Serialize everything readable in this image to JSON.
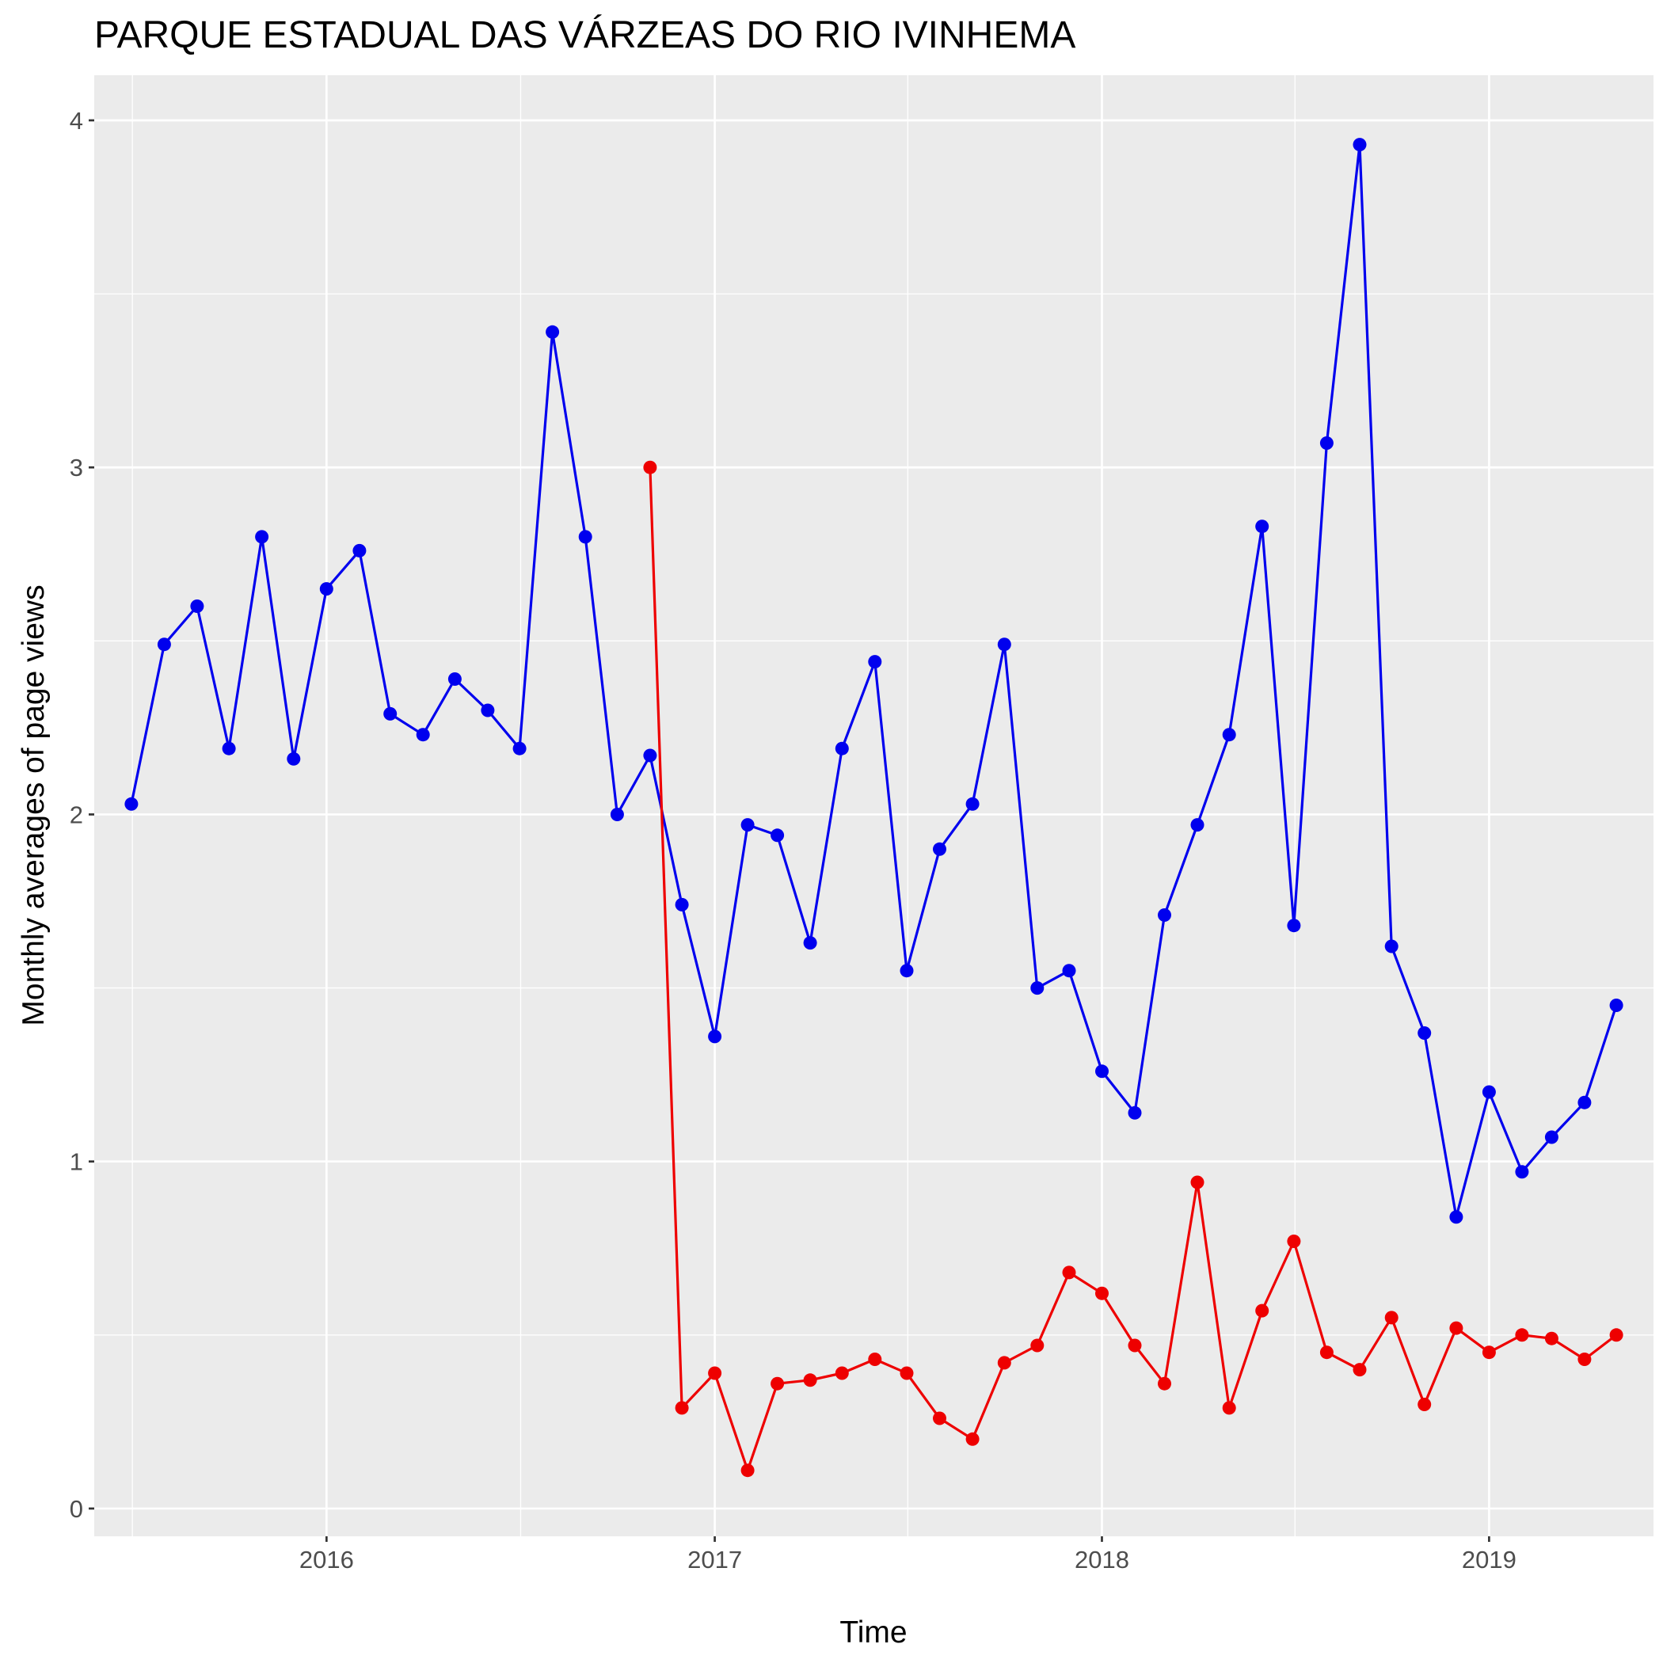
{
  "chart_data": {
    "type": "line",
    "title": "PARQUE ESTADUAL DAS VÁRZEAS DO RIO IVINHEMA",
    "xlabel": "Time",
    "ylabel": "Monthly averages of page views",
    "x_ticks": [
      "2016",
      "2017",
      "2018",
      "2019"
    ],
    "y_ticks": [
      "0",
      "1",
      "2",
      "3",
      "4"
    ],
    "ylim": [
      -0.08,
      4.13
    ],
    "xlim": [
      "2015-05-27",
      "2019-06-05"
    ],
    "grid": true,
    "legend": "none",
    "x": [
      "2015-07",
      "2015-08",
      "2015-09",
      "2015-10",
      "2015-11",
      "2015-12",
      "2016-01",
      "2016-02",
      "2016-03",
      "2016-04",
      "2016-05",
      "2016-06",
      "2016-07",
      "2016-08",
      "2016-09",
      "2016-10",
      "2016-11",
      "2016-12",
      "2017-01",
      "2017-02",
      "2017-03",
      "2017-04",
      "2017-05",
      "2017-06",
      "2017-07",
      "2017-08",
      "2017-09",
      "2017-10",
      "2017-11",
      "2017-12",
      "2018-01",
      "2018-02",
      "2018-03",
      "2018-04",
      "2018-05",
      "2018-06",
      "2018-07",
      "2018-08",
      "2018-09",
      "2018-10",
      "2018-11",
      "2018-12",
      "2019-01",
      "2019-02",
      "2019-03",
      "2019-04",
      "2019-05"
    ],
    "series": [
      {
        "color": "#0000ee",
        "values": [
          2.03,
          2.49,
          2.6,
          2.19,
          2.8,
          2.16,
          2.65,
          2.76,
          2.29,
          2.23,
          2.39,
          2.3,
          2.19,
          3.39,
          2.8,
          2.0,
          2.17,
          1.74,
          1.36,
          1.97,
          1.94,
          1.63,
          2.19,
          2.44,
          1.55,
          1.9,
          2.03,
          2.49,
          1.5,
          1.55,
          1.26,
          1.14,
          1.71,
          1.97,
          2.23,
          2.83,
          1.68,
          3.07,
          3.93,
          1.62,
          1.37,
          0.84,
          1.2,
          0.97,
          1.07,
          1.17,
          1.45
        ]
      },
      {
        "color": "#ee0000",
        "values": [
          null,
          null,
          null,
          null,
          null,
          null,
          null,
          null,
          null,
          null,
          null,
          null,
          null,
          null,
          null,
          null,
          3.0,
          0.29,
          0.39,
          0.11,
          0.36,
          0.37,
          0.39,
          0.43,
          0.39,
          0.26,
          0.2,
          0.42,
          0.47,
          0.68,
          0.62,
          0.47,
          0.36,
          0.94,
          0.29,
          0.57,
          0.77,
          0.45,
          0.4,
          0.55,
          0.3,
          0.52,
          0.45,
          0.5,
          0.49,
          0.43,
          0.5
        ]
      }
    ]
  }
}
